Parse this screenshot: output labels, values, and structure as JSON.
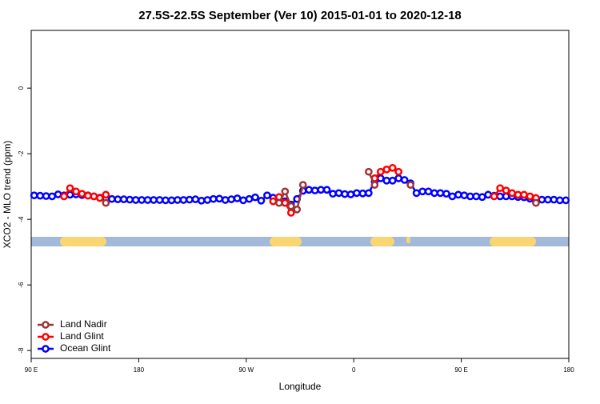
{
  "chart_data": {
    "type": "line",
    "title": "27.5S-22.5S September (Ver 10)   2015-01-01 to 2020-12-18",
    "x_label": "Longitude",
    "y_label": "XCO2 - MLO trend (ppm)",
    "xlim": [
      90,
      540
    ],
    "ylim": [
      -8.24,
      1.76
    ],
    "xticks": [
      {
        "value": 90,
        "label": "90 E"
      },
      180,
      {
        "value": 270,
        "label": "90 W"
      },
      {
        "value": 360,
        "label": "0"
      },
      {
        "value": 450,
        "label": "90 E"
      },
      180
    ],
    "yticks": [
      0,
      -2,
      -4,
      -6,
      -8
    ],
    "legend": "bottomleft",
    "grid": false,
    "series": [
      {
        "name": "Land Nadir",
        "color": "#9e3434",
        "x": [
          152.5,
          225,
          297.5,
          302.5,
          307.5,
          312.5,
          317.5,
          345,
          372.5,
          377.5,
          390,
          407.5,
          460,
          512.5
        ],
        "values": [
          -3.5,
          null,
          -3.5,
          -3.15,
          -3.6,
          -3.7,
          -2.95,
          null,
          -2.55,
          -2.95,
          null,
          -2.95,
          null,
          -3.5
        ]
      },
      {
        "name": "Land Glint",
        "color": "#ff0000",
        "x": [
          117.5,
          122.5,
          127.5,
          132.5,
          137.5,
          142.5,
          147.5,
          152.5,
          220,
          292.5,
          297.5,
          302.5,
          307.5,
          340,
          377.5,
          382.5,
          387.5,
          392.5,
          397.5,
          440,
          477.5,
          482.5,
          487.5,
          492.5,
          497.5,
          502.5,
          507.5,
          512.5
        ],
        "values": [
          -3.3,
          -3.05,
          -3.15,
          -3.22,
          -3.28,
          -3.3,
          -3.35,
          -3.25,
          null,
          -3.45,
          -3.32,
          -3.5,
          -3.8,
          null,
          -2.75,
          -2.55,
          -2.48,
          -2.43,
          -2.55,
          null,
          -3.3,
          -3.05,
          -3.12,
          -3.2,
          -3.25,
          -3.25,
          -3.3,
          -3.35
        ]
      },
      {
        "name": "Ocean Glint",
        "color": "#0000ff",
        "x": [
          92.5,
          97.5,
          102.5,
          107.5,
          112.5,
          117.5,
          122.5,
          127.5,
          132.5,
          137.5,
          142.5,
          147.5,
          152.5,
          157.5,
          162.5,
          167.5,
          172.5,
          177.5,
          182.5,
          187.5,
          192.5,
          197.5,
          202.5,
          207.5,
          212.5,
          217.5,
          222.5,
          227.5,
          232.5,
          237.5,
          242.5,
          247.5,
          252.5,
          257.5,
          262.5,
          267.5,
          272.5,
          277.5,
          282.5,
          287.5,
          292.5,
          297.5,
          302.5,
          307.5,
          312.5,
          317.5,
          322.5,
          327.5,
          332.5,
          337.5,
          342.5,
          347.5,
          352.5,
          357.5,
          362.5,
          367.5,
          372.5,
          377.5,
          382.5,
          387.5,
          392.5,
          397.5,
          402.5,
          407.5,
          412.5,
          417.5,
          422.5,
          427.5,
          432.5,
          437.5,
          442.5,
          447.5,
          452.5,
          457.5,
          462.5,
          467.5,
          472.5,
          477.5,
          482.5,
          487.5,
          492.5,
          497.5,
          502.5,
          507.5,
          512.5,
          517.5,
          522.5,
          527.5,
          532.5,
          537.5
        ],
        "values": [
          -3.27,
          -3.28,
          -3.29,
          -3.3,
          -3.24,
          -3.27,
          -3.25,
          -3.24,
          -3.26,
          -3.27,
          -3.3,
          -3.34,
          -3.37,
          -3.38,
          -3.39,
          -3.39,
          -3.4,
          -3.41,
          -3.41,
          -3.41,
          -3.41,
          -3.41,
          -3.42,
          -3.42,
          -3.41,
          -3.41,
          -3.4,
          -3.39,
          -3.43,
          -3.41,
          -3.38,
          -3.37,
          -3.41,
          -3.39,
          -3.36,
          -3.42,
          -3.38,
          -3.33,
          -3.43,
          -3.27,
          -3.34,
          -3.37,
          -3.45,
          -3.55,
          -3.38,
          -3.13,
          -3.1,
          -3.12,
          -3.1,
          -3.1,
          -3.22,
          -3.2,
          -3.23,
          -3.24,
          -3.2,
          -3.21,
          -3.2,
          -2.85,
          -2.75,
          -2.82,
          -2.82,
          -2.75,
          -2.8,
          -2.9,
          -3.2,
          -3.15,
          -3.15,
          -3.2,
          -3.2,
          -3.22,
          -3.3,
          -3.25,
          -3.27,
          -3.3,
          -3.3,
          -3.32,
          -3.25,
          -3.28,
          -3.3,
          -3.3,
          -3.3,
          -3.32,
          -3.33,
          -3.37,
          -3.38,
          -3.4,
          -3.4,
          -3.4,
          -3.42,
          -3.42
        ]
      }
    ]
  }
}
